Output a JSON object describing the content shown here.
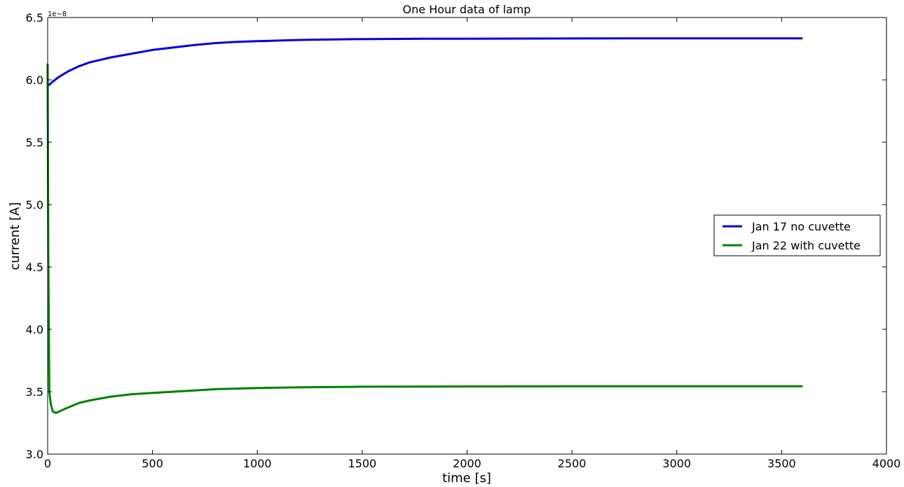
{
  "chart_data": {
    "type": "line",
    "title": "One Hour data of lamp",
    "xlabel": "time [s]",
    "ylabel": "current [A]",
    "y_offset_label": "1e−8",
    "xlim": [
      0,
      4000
    ],
    "ylim": [
      3.0,
      6.5
    ],
    "x_ticks": [
      0,
      500,
      1000,
      1500,
      2000,
      2500,
      3000,
      3500,
      4000
    ],
    "x_tick_labels": [
      "0",
      "500",
      "1000",
      "1500",
      "2000",
      "2500",
      "3000",
      "3500",
      "4000"
    ],
    "y_ticks": [
      3.0,
      3.5,
      4.0,
      4.5,
      5.0,
      5.5,
      6.0,
      6.5
    ],
    "y_tick_labels": [
      "3.0",
      "3.5",
      "4.0",
      "4.5",
      "5.0",
      "5.5",
      "6.0",
      "6.5"
    ],
    "grid": false,
    "legend_position": "right",
    "series": [
      {
        "name": "Jan 17 no cuvette",
        "color": "#0000dd",
        "x": [
          0,
          20,
          50,
          100,
          150,
          200,
          300,
          400,
          500,
          600,
          700,
          800,
          900,
          1000,
          1200,
          1400,
          1600,
          1800,
          2000,
          2500,
          3000,
          3500,
          3600
        ],
        "y": [
          5.95,
          5.98,
          6.02,
          6.07,
          6.11,
          6.14,
          6.18,
          6.21,
          6.24,
          6.26,
          6.28,
          6.295,
          6.305,
          6.31,
          6.32,
          6.325,
          6.328,
          6.33,
          6.33,
          6.332,
          6.333,
          6.333,
          6.333
        ]
      },
      {
        "name": "Jan 22 with cuvette",
        "color": "#008000",
        "x": [
          0,
          3,
          8,
          15,
          25,
          40,
          60,
          80,
          100,
          150,
          200,
          300,
          400,
          500,
          600,
          700,
          800,
          900,
          1000,
          1200,
          1500,
          2000,
          2500,
          3000,
          3500,
          3600
        ],
        "y": [
          6.13,
          4.6,
          3.5,
          3.4,
          3.34,
          3.33,
          3.345,
          3.36,
          3.375,
          3.41,
          3.43,
          3.46,
          3.48,
          3.49,
          3.5,
          3.51,
          3.52,
          3.525,
          3.53,
          3.535,
          3.54,
          3.542,
          3.543,
          3.543,
          3.543,
          3.543
        ]
      }
    ]
  }
}
